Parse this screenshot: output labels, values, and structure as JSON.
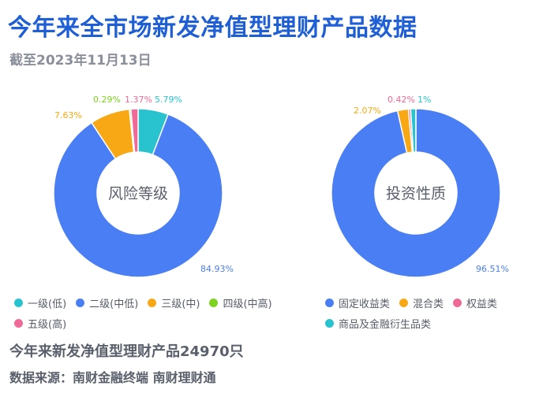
{
  "title": "今年来全市场新发净值型理财产品数据",
  "subtitle": "截至2023年11月13日",
  "footer": {
    "count_text": "今年来新发净值型理财产品24970只",
    "source_text": "数据来源：南财金融终端 南财理财通"
  },
  "chart_data": [
    {
      "type": "pie",
      "center_label": "风险等级",
      "categories": [
        "一级(低)",
        "二级(中低)",
        "三级(中)",
        "四级(中高)",
        "五级(高)"
      ],
      "values": [
        5.79,
        84.93,
        7.63,
        0.29,
        1.37
      ],
      "value_labels": [
        "5.79%",
        "84.93%",
        "7.63%",
        "0.29%",
        "1.37%"
      ],
      "colors": [
        "#29c3cf",
        "#4a7ef5",
        "#f7a814",
        "#7ed321",
        "#f06a97"
      ],
      "donut": true,
      "legend_position": "bottom"
    },
    {
      "type": "pie",
      "center_label": "投资性质",
      "categories": [
        "固定收益类",
        "混合类",
        "权益类",
        "商品及金融衍生品类"
      ],
      "values": [
        96.51,
        2.07,
        0.42,
        1
      ],
      "value_labels": [
        "96.51%",
        "2.07%",
        "0.42%",
        "1%"
      ],
      "colors": [
        "#4a7ef5",
        "#f7a814",
        "#f06a97",
        "#29c3cf"
      ],
      "donut": true,
      "legend_position": "bottom"
    }
  ]
}
